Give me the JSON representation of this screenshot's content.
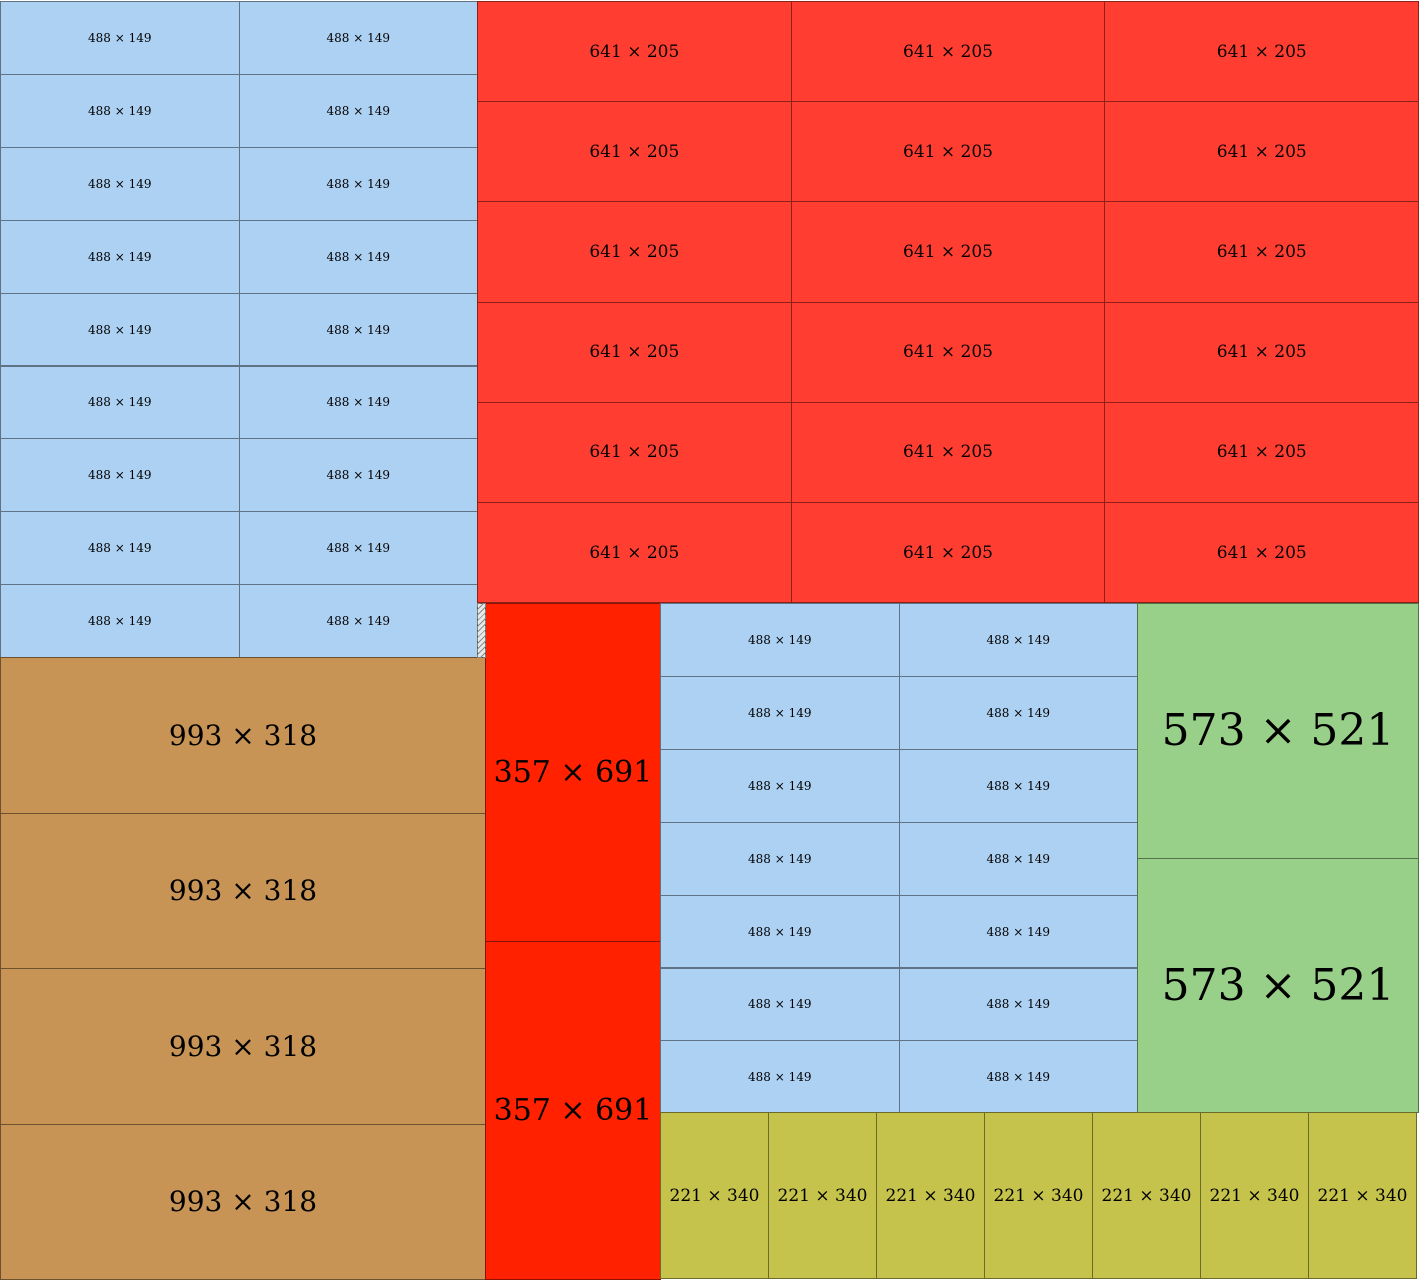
{
  "colors": {
    "light_blue": "#add1f3",
    "red": "#ff3d31",
    "bright_red": "#ff2100",
    "tan": "#c79456",
    "green": "#98cf89",
    "olive": "#c5c34b"
  },
  "labels": {
    "small_blue": "488 × 149",
    "red_grid": "641 × 205",
    "tan": "993 × 318",
    "tall_red": "357 × 691",
    "green": "573 × 521",
    "olive": "221 × 340"
  }
}
